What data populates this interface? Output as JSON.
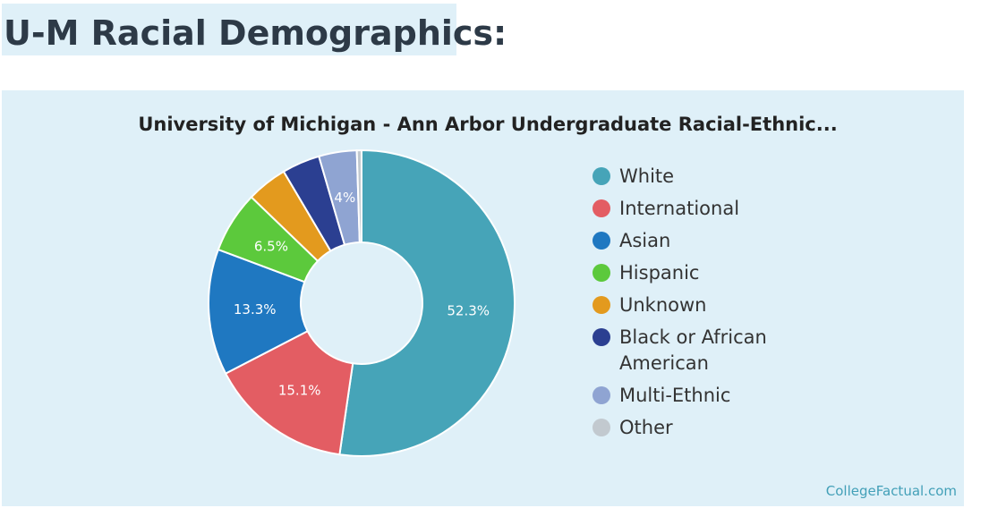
{
  "page": {
    "heading": "U-M Racial Demographics:"
  },
  "chart_data": {
    "type": "pie",
    "donut": true,
    "title": "University of Michigan - Ann Arbor Undergraduate Racial-Ethnic...",
    "legend_position": "right",
    "source": "CollegeFactual.com",
    "slices": [
      {
        "name": "White",
        "value": 52.3,
        "label": "52.3%",
        "color": "#46a4b8"
      },
      {
        "name": "International",
        "value": 15.1,
        "label": "15.1%",
        "color": "#e35d63"
      },
      {
        "name": "Asian",
        "value": 13.3,
        "label": "13.3%",
        "color": "#1f78c1"
      },
      {
        "name": "Hispanic",
        "value": 6.5,
        "label": "6.5%",
        "color": "#5cc93c"
      },
      {
        "name": "Unknown",
        "value": 4.3,
        "label": "",
        "color": "#e39a1e"
      },
      {
        "name": "Black or African American",
        "value": 4.0,
        "label": "",
        "color": "#2b3f91"
      },
      {
        "name": "Multi-Ethnic",
        "value": 4.0,
        "label": "4%",
        "color": "#8fa4d2"
      },
      {
        "name": "Other",
        "value": 0.5,
        "label": "",
        "color": "#c2c9cf"
      }
    ]
  }
}
